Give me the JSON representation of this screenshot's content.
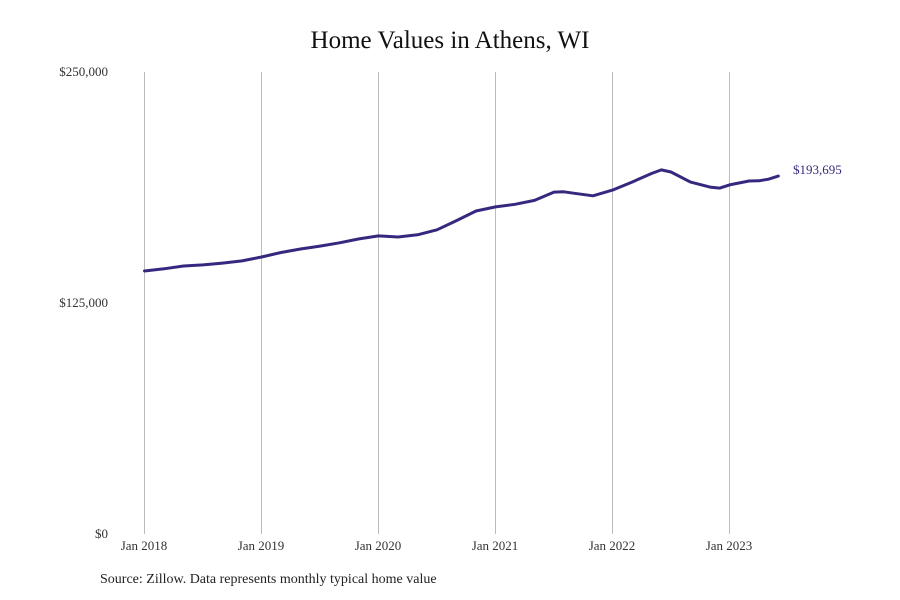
{
  "title": "Home Values in Athens, WI",
  "source": "Source: Zillow. Data represents monthly typical home value",
  "end_label": "$193,695",
  "colors": {
    "line": "#35297f",
    "grid": "#bbbbbb",
    "text": "#333333"
  },
  "y_ticks": [
    "$250,000",
    "$125,000",
    "$0"
  ],
  "x_ticks": [
    "Jan 2018",
    "Jan 2019",
    "Jan 2020",
    "Jan 2021",
    "Jan 2022",
    "Jan 2023"
  ],
  "chart_data": {
    "type": "line",
    "title": "Home Values in Athens, WI",
    "xlabel": "",
    "ylabel": "",
    "ylim": [
      0,
      250000
    ],
    "y_ticks": [
      0,
      125000,
      250000
    ],
    "x_ticks": [
      "Jan 2018",
      "Jan 2019",
      "Jan 2020",
      "Jan 2021",
      "Jan 2022",
      "Jan 2023"
    ],
    "grid": "vertical lines at each January",
    "annotations": [
      {
        "text": "$193,695",
        "at": "Jun 2023"
      }
    ],
    "series": [
      {
        "name": "Typical home value",
        "x": [
          "2018-01",
          "2018-03",
          "2018-05",
          "2018-07",
          "2018-09",
          "2018-11",
          "2019-01",
          "2019-03",
          "2019-05",
          "2019-07",
          "2019-09",
          "2019-11",
          "2020-01",
          "2020-03",
          "2020-05",
          "2020-07",
          "2020-09",
          "2020-11",
          "2021-01",
          "2021-03",
          "2021-05",
          "2021-07",
          "2021-08",
          "2021-09",
          "2021-11",
          "2022-01",
          "2022-03",
          "2022-05",
          "2022-06",
          "2022-07",
          "2022-09",
          "2022-11",
          "2022-12",
          "2023-01",
          "2023-03",
          "2023-04",
          "2023-05",
          "2023-06"
        ],
        "values": [
          142300,
          143500,
          145000,
          145600,
          146600,
          147800,
          149900,
          152300,
          154200,
          155800,
          157600,
          159700,
          161300,
          160700,
          161900,
          164600,
          169600,
          174800,
          177000,
          178400,
          180500,
          185000,
          185200,
          184400,
          183000,
          186100,
          190400,
          195100,
          197000,
          195900,
          190400,
          187700,
          187200,
          188900,
          191000,
          191100,
          192000,
          193695
        ]
      }
    ]
  }
}
